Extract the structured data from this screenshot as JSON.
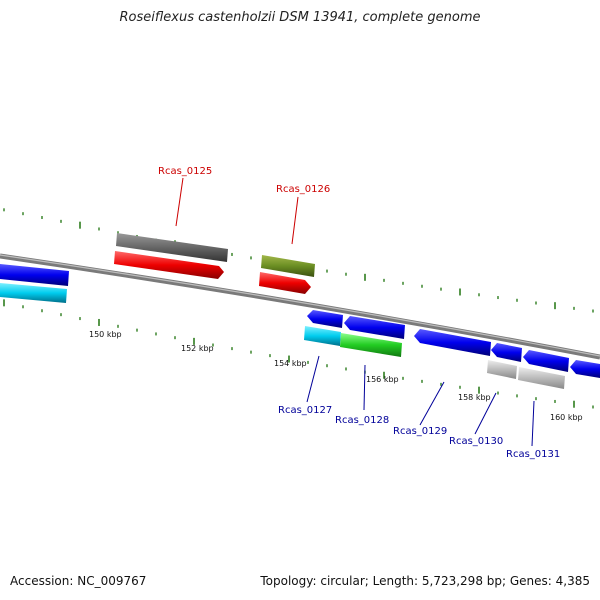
{
  "title": "Roseiflexus castenholzii DSM 13941, complete genome",
  "footer": {
    "accession": "Accession: NC_009767",
    "summary": "Topology: circular; Length: 5,723,298 bp; Genes: 4,385"
  },
  "scale_labels": [
    "150 kbp",
    "152 kbp",
    "154 kbp",
    "156 kbp",
    "158 kbp",
    "160 kbp"
  ],
  "colors": {
    "backbone": "#888888",
    "tick": "#2e7d1e",
    "label_top": "#cc0000",
    "label_bottom": "#000099"
  },
  "gene_labels": {
    "rcas_0125": "Rcas_0125",
    "rcas_0126": "Rcas_0126",
    "rcas_0127": "Rcas_0127",
    "rcas_0128": "Rcas_0128",
    "rcas_0129": "Rcas_0129",
    "rcas_0130": "Rcas_0130",
    "rcas_0131": "Rcas_0131"
  }
}
